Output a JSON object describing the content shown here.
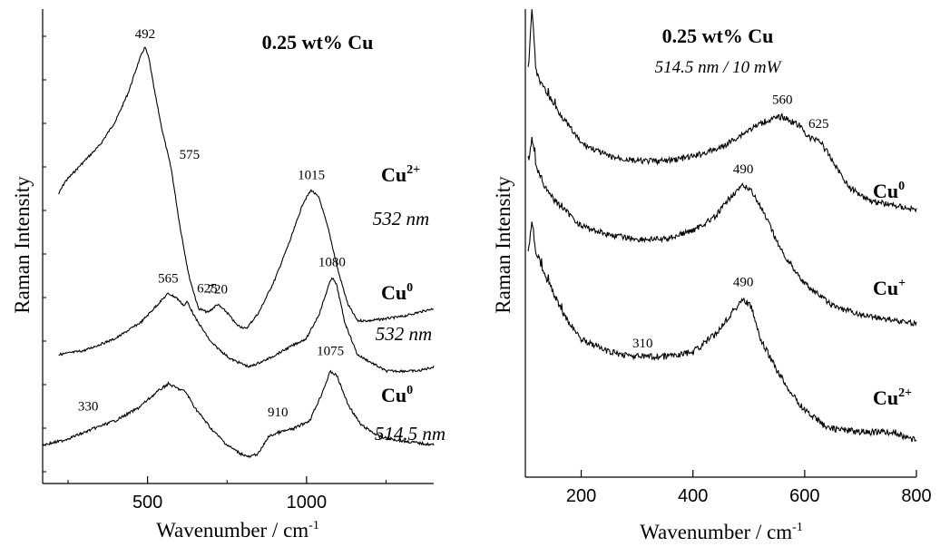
{
  "chart_data": [
    {
      "type": "line",
      "title": "0.25 wt% Cu",
      "xlabel": "Wavenumber / cm",
      "xlabel_superscript": "-1",
      "ylabel": "Raman Intensity",
      "xlim": [
        170,
        1400
      ],
      "x_ticks": [
        500,
        1000
      ],
      "y_ticks_shown": false,
      "grid": false,
      "series": [
        {
          "name": "Cu2+",
          "label_base": "Cu",
          "label_superscript": "2+",
          "excitation": "532 nm",
          "points": [
            [
              220,
              0.64
            ],
            [
              240,
              0.67
            ],
            [
              300,
              0.72
            ],
            [
              350,
              0.76
            ],
            [
              400,
              0.82
            ],
            [
              440,
              0.89
            ],
            [
              470,
              0.96
            ],
            [
              485,
              0.99
            ],
            [
              492,
              1.0
            ],
            [
              505,
              0.97
            ],
            [
              520,
              0.9
            ],
            [
              545,
              0.8
            ],
            [
              575,
              0.7
            ],
            [
              600,
              0.57
            ],
            [
              630,
              0.44
            ],
            [
              660,
              0.36
            ],
            [
              690,
              0.35
            ],
            [
              720,
              0.37
            ],
            [
              750,
              0.35
            ],
            [
              780,
              0.32
            ],
            [
              810,
              0.31
            ],
            [
              850,
              0.35
            ],
            [
              900,
              0.43
            ],
            [
              950,
              0.53
            ],
            [
              990,
              0.62
            ],
            [
              1015,
              0.65
            ],
            [
              1040,
              0.63
            ],
            [
              1070,
              0.55
            ],
            [
              1100,
              0.45
            ],
            [
              1130,
              0.37
            ],
            [
              1160,
              0.33
            ],
            [
              1200,
              0.33
            ],
            [
              1300,
              0.34
            ],
            [
              1400,
              0.36
            ]
          ],
          "annotations": [
            {
              "x": 492,
              "text": "492"
            },
            {
              "x": 575,
              "text": "575"
            },
            {
              "x": 720,
              "text": "720"
            },
            {
              "x": 1015,
              "text": "1015"
            }
          ]
        },
        {
          "name": "Cu0 (532 nm)",
          "label_base": "Cu",
          "label_superscript": "0",
          "excitation": "532 nm",
          "points": [
            [
              220,
              0.26
            ],
            [
              300,
              0.27
            ],
            [
              400,
              0.3
            ],
            [
              480,
              0.34
            ],
            [
              540,
              0.39
            ],
            [
              565,
              0.41
            ],
            [
              590,
              0.4
            ],
            [
              615,
              0.38
            ],
            [
              625,
              0.39
            ],
            [
              650,
              0.35
            ],
            [
              700,
              0.29
            ],
            [
              760,
              0.25
            ],
            [
              820,
              0.23
            ],
            [
              880,
              0.25
            ],
            [
              950,
              0.28
            ],
            [
              1000,
              0.3
            ],
            [
              1040,
              0.36
            ],
            [
              1070,
              0.43
            ],
            [
              1080,
              0.45
            ],
            [
              1095,
              0.43
            ],
            [
              1120,
              0.34
            ],
            [
              1160,
              0.26
            ],
            [
              1250,
              0.22
            ],
            [
              1350,
              0.22
            ],
            [
              1400,
              0.23
            ]
          ],
          "annotations": [
            {
              "x": 565,
              "text": "565"
            },
            {
              "x": 625,
              "text": "625"
            },
            {
              "x": 1080,
              "text": "1080"
            }
          ]
        },
        {
          "name": "Cu0 (514.5 nm)",
          "label_base": "Cu",
          "label_superscript": "0",
          "excitation": "514.5 nm",
          "points": [
            [
              170,
              0.05
            ],
            [
              230,
              0.06
            ],
            [
              300,
              0.08
            ],
            [
              330,
              0.09
            ],
            [
              400,
              0.11
            ],
            [
              470,
              0.14
            ],
            [
              530,
              0.18
            ],
            [
              565,
              0.2
            ],
            [
              590,
              0.19
            ],
            [
              620,
              0.18
            ],
            [
              650,
              0.14
            ],
            [
              700,
              0.09
            ],
            [
              750,
              0.05
            ],
            [
              790,
              0.03
            ],
            [
              820,
              0.02
            ],
            [
              850,
              0.03
            ],
            [
              880,
              0.07
            ],
            [
              910,
              0.08
            ],
            [
              960,
              0.09
            ],
            [
              1010,
              0.11
            ],
            [
              1045,
              0.17
            ],
            [
              1075,
              0.23
            ],
            [
              1095,
              0.22
            ],
            [
              1130,
              0.15
            ],
            [
              1170,
              0.1
            ],
            [
              1230,
              0.07
            ],
            [
              1300,
              0.06
            ],
            [
              1400,
              0.05
            ]
          ],
          "annotations": [
            {
              "x": 330,
              "text": "330"
            },
            {
              "x": 910,
              "text": "910"
            },
            {
              "x": 1075,
              "text": "1075"
            }
          ]
        }
      ]
    },
    {
      "type": "line",
      "title": "0.25 wt% Cu",
      "subtitle": "514.5 nm / 10 mW",
      "xlabel": "Wavenumber / cm",
      "xlabel_superscript": "-1",
      "ylabel": "Raman Intensity",
      "xlim": [
        100,
        800
      ],
      "x_ticks": [
        200,
        400,
        600,
        800
      ],
      "y_ticks_shown": false,
      "grid": false,
      "series": [
        {
          "name": "Cu0",
          "label_base": "Cu",
          "label_superscript": "0",
          "points": [
            [
              105,
              0.85
            ],
            [
              112,
              1.0
            ],
            [
              118,
              0.86
            ],
            [
              125,
              0.83
            ],
            [
              140,
              0.8
            ],
            [
              160,
              0.76
            ],
            [
              200,
              0.69
            ],
            [
              250,
              0.66
            ],
            [
              300,
              0.65
            ],
            [
              350,
              0.65
            ],
            [
              400,
              0.66
            ],
            [
              450,
              0.68
            ],
            [
              500,
              0.72
            ],
            [
              530,
              0.74
            ],
            [
              560,
              0.75
            ],
            [
              590,
              0.73
            ],
            [
              610,
              0.7
            ],
            [
              625,
              0.7
            ],
            [
              650,
              0.65
            ],
            [
              680,
              0.59
            ],
            [
              720,
              0.56
            ],
            [
              760,
              0.55
            ],
            [
              800,
              0.54
            ]
          ],
          "annotations": [
            {
              "x": 560,
              "text": "560"
            },
            {
              "x": 625,
              "text": "625"
            }
          ]
        },
        {
          "name": "Cu+",
          "label_base": "Cu",
          "label_superscript": "+",
          "points": [
            [
              105,
              0.63
            ],
            [
              112,
              0.7
            ],
            [
              118,
              0.64
            ],
            [
              130,
              0.6
            ],
            [
              150,
              0.56
            ],
            [
              200,
              0.5
            ],
            [
              250,
              0.48
            ],
            [
              300,
              0.47
            ],
            [
              350,
              0.47
            ],
            [
              400,
              0.49
            ],
            [
              440,
              0.52
            ],
            [
              470,
              0.57
            ],
            [
              490,
              0.59
            ],
            [
              505,
              0.58
            ],
            [
              530,
              0.52
            ],
            [
              560,
              0.44
            ],
            [
              600,
              0.37
            ],
            [
              650,
              0.32
            ],
            [
              700,
              0.3
            ],
            [
              750,
              0.29
            ],
            [
              800,
              0.28
            ]
          ],
          "annotations": [
            {
              "x": 490,
              "text": "490"
            }
          ]
        },
        {
          "name": "Cu2+",
          "label_base": "Cu",
          "label_superscript": "2+",
          "points": [
            [
              105,
              0.44
            ],
            [
              112,
              0.52
            ],
            [
              118,
              0.45
            ],
            [
              140,
              0.38
            ],
            [
              170,
              0.3
            ],
            [
              200,
              0.25
            ],
            [
              250,
              0.22
            ],
            [
              300,
              0.21
            ],
            [
              350,
              0.21
            ],
            [
              400,
              0.22
            ],
            [
              440,
              0.26
            ],
            [
              470,
              0.31
            ],
            [
              490,
              0.34
            ],
            [
              505,
              0.32
            ],
            [
              520,
              0.25
            ],
            [
              550,
              0.18
            ],
            [
              580,
              0.12
            ],
            [
              600,
              0.09
            ],
            [
              640,
              0.05
            ],
            [
              700,
              0.04
            ],
            [
              760,
              0.04
            ],
            [
              800,
              0.02
            ]
          ],
          "annotations": [
            {
              "x": 310,
              "text": "310"
            },
            {
              "x": 490,
              "text": "490"
            }
          ]
        }
      ]
    }
  ]
}
